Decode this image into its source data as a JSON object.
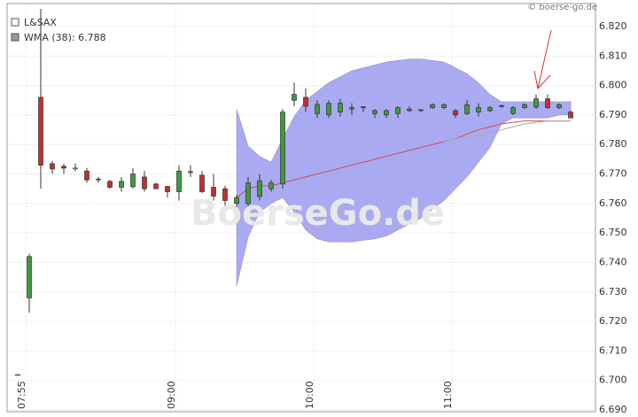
{
  "chart_data": {
    "type": "candlestick",
    "name": "L&SAX",
    "copyright": "© boerse-go.de",
    "watermark": "BoerseGo.de",
    "up_color": "#3e9a3e",
    "down_color": "#c03030",
    "flat_color": "#ffffff",
    "grid": true,
    "categories": [
      null,
      "07:55",
      null,
      null,
      null,
      null,
      null,
      null,
      null,
      null,
      null,
      null,
      null,
      null,
      "09:00",
      null,
      null,
      null,
      null,
      null,
      null,
      null,
      null,
      null,
      null,
      null,
      "10:00",
      null,
      null,
      null,
      null,
      null,
      null,
      null,
      null,
      null,
      null,
      null,
      "11:00",
      null,
      null,
      null,
      null,
      null,
      null,
      null,
      null,
      null,
      null
    ],
    "open": [
      6.702,
      6.728,
      6.796,
      6.7735,
      6.7726,
      6.772,
      6.771,
      6.768,
      6.7675,
      6.7655,
      6.7657,
      6.769,
      6.7666,
      6.7658,
      6.764,
      6.7705,
      6.7696,
      6.7655,
      6.765,
      6.76,
      6.76,
      6.7624,
      6.765,
      6.7666,
      6.795,
      6.796,
      6.7905,
      6.79,
      6.791,
      6.792,
      6.7925,
      6.7905,
      6.79,
      6.7905,
      6.7915,
      6.7915,
      6.7925,
      6.7925,
      6.7915,
      6.7905,
      6.791,
      6.7915,
      6.793,
      6.7905,
      6.7925,
      6.7927,
      6.7955,
      6.7925,
      6.791
    ],
    "high": [
      6.702,
      6.743,
      6.826,
      6.7744,
      6.7735,
      6.7735,
      6.772,
      6.769,
      6.768,
      6.769,
      6.772,
      6.771,
      6.767,
      6.766,
      6.773,
      6.773,
      6.771,
      6.77,
      6.766,
      6.763,
      6.769,
      6.77,
      6.768,
      6.792,
      6.801,
      6.799,
      6.795,
      6.795,
      6.7955,
      6.794,
      6.793,
      6.792,
      6.792,
      6.793,
      6.793,
      6.792,
      6.794,
      6.794,
      6.792,
      6.795,
      6.794,
      6.793,
      6.7935,
      6.793,
      6.794,
      6.797,
      6.797,
      6.794,
      6.7915
    ],
    "low": [
      6.702,
      6.723,
      6.765,
      6.77,
      6.77,
      6.771,
      6.767,
      6.767,
      6.765,
      6.764,
      6.765,
      6.764,
      6.765,
      6.762,
      6.761,
      6.769,
      6.7635,
      6.761,
      6.759,
      6.756,
      6.759,
      6.761,
      6.764,
      6.765,
      6.793,
      6.791,
      6.789,
      6.789,
      6.7895,
      6.79,
      6.791,
      6.789,
      6.789,
      6.789,
      6.791,
      6.791,
      6.792,
      6.792,
      6.789,
      6.79,
      6.7895,
      6.791,
      6.7925,
      6.79,
      6.792,
      6.792,
      6.792,
      6.792,
      6.789
    ],
    "close": [
      6.702,
      6.742,
      6.773,
      6.7717,
      6.772,
      6.772,
      6.768,
      6.7683,
      6.7655,
      6.7675,
      6.77,
      6.765,
      6.765,
      6.764,
      6.771,
      6.7708,
      6.764,
      6.7625,
      6.761,
      6.762,
      6.767,
      6.7677,
      6.767,
      6.791,
      6.797,
      6.793,
      6.7936,
      6.794,
      6.794,
      6.7925,
      6.7928,
      6.7915,
      6.7915,
      6.7925,
      6.792,
      6.7918,
      6.7935,
      6.7935,
      6.79,
      6.7935,
      6.7925,
      6.7925,
      6.7932,
      6.7925,
      6.7935,
      6.7955,
      6.7925,
      6.7935,
      6.789
    ],
    "band": {
      "color": "#aaaaf2",
      "upper": [
        null,
        null,
        null,
        null,
        null,
        null,
        null,
        null,
        null,
        null,
        null,
        null,
        null,
        null,
        null,
        null,
        null,
        null,
        null,
        6.792,
        6.7795,
        6.776,
        6.774,
        6.782,
        6.7895,
        6.795,
        6.798,
        6.801,
        6.803,
        6.805,
        6.806,
        6.807,
        6.808,
        6.8085,
        6.809,
        6.809,
        6.8085,
        6.808,
        6.806,
        6.804,
        6.801,
        6.797,
        6.7945,
        6.7945,
        6.7945,
        6.7945,
        6.7945,
        6.7945,
        6.7945
      ],
      "lower": [
        null,
        null,
        null,
        null,
        null,
        null,
        null,
        null,
        null,
        null,
        null,
        null,
        null,
        null,
        null,
        null,
        null,
        null,
        null,
        6.732,
        6.7486,
        6.757,
        6.76,
        6.762,
        6.757,
        6.751,
        6.748,
        6.747,
        6.747,
        6.747,
        6.7475,
        6.748,
        6.749,
        6.751,
        6.753,
        6.755,
        6.758,
        6.761,
        6.765,
        6.769,
        6.774,
        6.779,
        6.787,
        6.789,
        6.789,
        6.789,
        6.789,
        6.79,
        6.79
      ]
    },
    "series": [
      {
        "name": "WMA (38): 6.788",
        "color": "#d04a5a",
        "values": [
          null,
          null,
          null,
          null,
          null,
          null,
          null,
          null,
          null,
          null,
          null,
          null,
          null,
          null,
          null,
          null,
          null,
          null,
          null,
          6.762,
          6.765,
          6.766,
          6.766,
          6.767,
          6.768,
          6.769,
          6.77,
          6.771,
          6.772,
          6.773,
          6.774,
          6.775,
          6.776,
          6.777,
          6.778,
          6.779,
          6.78,
          6.781,
          6.782,
          6.7835,
          6.785,
          6.786,
          6.787,
          6.7875,
          6.788,
          6.788,
          6.788,
          6.788,
          6.788
        ]
      },
      {
        "color": "#a8a8a8",
        "values": [
          null,
          null,
          null,
          null,
          null,
          null,
          null,
          null,
          null,
          null,
          null,
          null,
          null,
          null,
          null,
          null,
          null,
          null,
          null,
          null,
          null,
          null,
          null,
          null,
          null,
          null,
          null,
          null,
          null,
          null,
          null,
          null,
          null,
          null,
          null,
          null,
          null,
          6.781,
          6.782,
          6.7825,
          6.783,
          6.784,
          6.785,
          6.786,
          6.787,
          6.7875,
          6.788,
          6.788,
          6.788
        ]
      }
    ],
    "ylim": [
      6.6894,
      6.8278
    ],
    "yticks": [
      {
        "value": 6.69,
        "label": "6.690"
      },
      {
        "value": 6.7,
        "label": "6.700"
      },
      {
        "value": 6.71,
        "label": "6.710"
      },
      {
        "value": 6.72,
        "label": "6.720"
      },
      {
        "value": 6.73,
        "label": "6.730"
      },
      {
        "value": 6.74,
        "label": "6.740"
      },
      {
        "value": 6.75,
        "label": "6.750"
      },
      {
        "value": 6.76,
        "label": "6.760"
      },
      {
        "value": 6.77,
        "label": "6.770"
      },
      {
        "value": 6.78,
        "label": "6.780"
      },
      {
        "value": 6.79,
        "label": "6.790"
      },
      {
        "value": 6.8,
        "label": "6.800"
      },
      {
        "value": 6.81,
        "label": "6.810"
      },
      {
        "value": 6.82,
        "label": "6.820"
      }
    ]
  }
}
